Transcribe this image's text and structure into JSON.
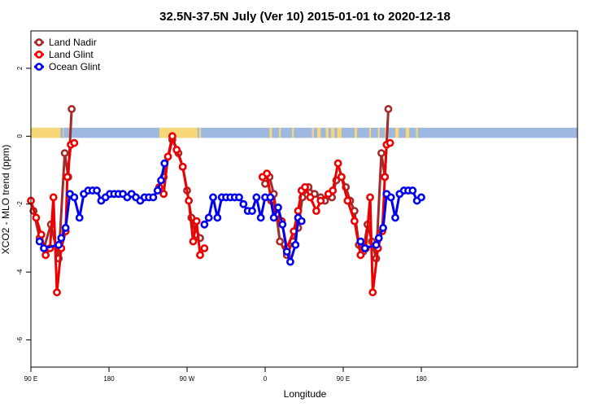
{
  "chart_data": {
    "type": "line",
    "title": "32.5N-37.5N July (Ver 10)   2015-01-01 to 2020-12-18",
    "xlabel": "Longitude",
    "ylabel": "XCO2 - MLO trend (ppm)",
    "xlim": [
      -90,
      540
    ],
    "ylim": [
      -6.8,
      3.1
    ],
    "x_ticks": [
      {
        "value": -90,
        "label": "90 E"
      },
      {
        "value": 0,
        "label": "180"
      },
      {
        "value": 90,
        "label": "90 W"
      },
      {
        "value": 180,
        "label": "0"
      },
      {
        "value": 270,
        "label": "90 E"
      },
      {
        "value": 360,
        "label": "180"
      }
    ],
    "y_ticks": [
      {
        "value": 2,
        "label": "2"
      },
      {
        "value": 0,
        "label": "0"
      },
      {
        "value": -2,
        "label": "-2"
      },
      {
        "value": -4,
        "label": "-4"
      },
      {
        "value": -6,
        "label": "-6"
      }
    ],
    "grid": false,
    "legend": "top-left",
    "land_ocean_strip": {
      "y_top": 0.25,
      "y_bottom": -0.05,
      "land_color": "#f8d778",
      "ocean_color": "#9fb8df",
      "land_segments": [
        [
          -90,
          -56
        ],
        [
          -53,
          -52
        ],
        [
          58,
          102
        ],
        [
          104,
          106
        ],
        [
          185,
          188
        ],
        [
          196,
          198
        ],
        [
          211,
          213
        ],
        [
          234,
          236
        ],
        [
          240,
          244
        ],
        [
          250,
          253
        ],
        [
          256,
          260
        ],
        [
          263,
          268
        ],
        [
          283,
          286
        ],
        [
          300,
          302
        ],
        [
          310,
          312
        ],
        [
          318,
          320
        ],
        [
          330,
          334
        ],
        [
          342,
          346
        ],
        [
          354,
          356
        ]
      ]
    },
    "series": [
      {
        "name": "Land Nadir",
        "color": "#a52a2a",
        "segments": [
          [
            [
              -87,
              -2.2
            ],
            [
              -80,
              -3
            ],
            [
              -75,
              -3.3
            ],
            [
              -67,
              -2.6
            ],
            [
              -58,
              -3.6
            ],
            [
              -51,
              -0.5
            ],
            [
              -47,
              -1.2
            ],
            [
              -43,
              0.8
            ]
          ],
          [
            [
              63,
              -1.2
            ],
            [
              73,
              -0.1
            ],
            [
              80,
              -0.5
            ],
            [
              85,
              -0.9
            ],
            [
              90,
              -1.6
            ],
            [
              95,
              -2.4
            ],
            [
              100,
              -2.9
            ],
            [
              105,
              -3
            ]
          ],
          [
            [
              180,
              -1.4
            ],
            [
              185,
              -1.2
            ],
            [
              190,
              -1.7
            ],
            [
              197,
              -3.1
            ],
            [
              205,
              -3.5
            ],
            [
              212,
              -3.1
            ],
            [
              218,
              -2.7
            ],
            [
              223,
              -1.8
            ],
            [
              230,
              -1.5
            ],
            [
              237,
              -1.7
            ],
            [
              244,
              -1.8
            ],
            [
              249,
              -1.9
            ],
            [
              257,
              -1.8
            ],
            [
              262,
              -1.3
            ],
            [
              268,
              -1.2
            ],
            [
              273,
              -1.5
            ],
            [
              278,
              -1.9
            ],
            [
              283,
              -2.2
            ],
            [
              288,
              -3.2
            ],
            [
              293,
              -3.4
            ],
            [
              298,
              -2.6
            ],
            [
              303,
              -3.1
            ],
            [
              308,
              -3.6
            ],
            [
              314,
              -0.5
            ],
            [
              318,
              -1.2
            ],
            [
              322,
              0.8
            ]
          ]
        ]
      },
      {
        "name": "Land Glint",
        "color": "#ee0000",
        "segments": [
          [
            [
              -90,
              -1.9
            ],
            [
              -84,
              -2.4
            ],
            [
              -78,
              -2.9
            ],
            [
              -73,
              -3.5
            ],
            [
              -68,
              -3.3
            ],
            [
              -64,
              -1.8
            ],
            [
              -60,
              -4.6
            ],
            [
              -55,
              -3.3
            ],
            [
              -50,
              -2.8
            ],
            [
              -48,
              -1.2
            ],
            [
              -44,
              -0.25
            ],
            [
              -40,
              -0.2
            ]
          ],
          [
            [
              58,
              -1.5
            ],
            [
              63,
              -1.7
            ],
            [
              68,
              -0.6
            ],
            [
              73,
              0
            ],
            [
              78,
              -0.4
            ],
            [
              85,
              -0.9
            ],
            [
              92,
              -1.9
            ],
            [
              97,
              -3.1
            ],
            [
              101,
              -2.5
            ],
            [
              105,
              -3.5
            ],
            [
              110,
              -3.3
            ]
          ],
          [
            [
              177,
              -1.2
            ],
            [
              182,
              -1.1
            ],
            [
              187,
              -1.9
            ],
            [
              193,
              -2.3
            ],
            [
              199,
              -2.5
            ],
            [
              205,
              -3.3
            ],
            [
              213,
              -2.8
            ],
            [
              218,
              -2.2
            ],
            [
              222,
              -1.6
            ],
            [
              226,
              -1.5
            ],
            [
              232,
              -1.8
            ],
            [
              239,
              -2.2
            ],
            [
              244,
              -1.9
            ],
            [
              253,
              -1.7
            ],
            [
              258,
              -1.6
            ],
            [
              264,
              -0.8
            ],
            [
              268,
              -1.2
            ],
            [
              275,
              -1.9
            ],
            [
              283,
              -2.5
            ],
            [
              290,
              -3.5
            ],
            [
              296,
              -3.3
            ],
            [
              301,
              -1.8
            ],
            [
              304,
              -4.6
            ],
            [
              310,
              -3.3
            ],
            [
              315,
              -2.8
            ],
            [
              318,
              -1.2
            ],
            [
              320,
              -0.25
            ],
            [
              324,
              -0.2
            ]
          ]
        ]
      },
      {
        "name": "Ocean Glint",
        "color": "#0000ee",
        "segments": [
          [
            [
              -80,
              -3.1
            ],
            [
              -75,
              -3.3
            ],
            [
              -58,
              -3.2
            ],
            [
              -55,
              -3
            ],
            [
              -50,
              -2.7
            ],
            [
              -45,
              -1.7
            ],
            [
              -40,
              -1.8
            ],
            [
              -34,
              -2.4
            ],
            [
              -29,
              -1.7
            ],
            [
              -24,
              -1.6
            ],
            [
              -19,
              -1.6
            ],
            [
              -14,
              -1.6
            ],
            [
              -9,
              -1.9
            ],
            [
              -4,
              -1.8
            ],
            [
              1,
              -1.7
            ],
            [
              6,
              -1.7
            ],
            [
              11,
              -1.7
            ],
            [
              16,
              -1.7
            ],
            [
              21,
              -1.8
            ],
            [
              26,
              -1.7
            ],
            [
              31,
              -1.8
            ],
            [
              36,
              -1.9
            ],
            [
              41,
              -1.8
            ],
            [
              46,
              -1.8
            ],
            [
              51,
              -1.8
            ],
            [
              56,
              -1.6
            ],
            [
              60,
              -1.3
            ],
            [
              64,
              -0.8
            ]
          ],
          [
            [
              110,
              -2.6
            ],
            [
              115,
              -2.4
            ],
            [
              120,
              -1.8
            ],
            [
              125,
              -2.4
            ],
            [
              130,
              -1.8
            ],
            [
              135,
              -1.8
            ],
            [
              140,
              -1.8
            ],
            [
              145,
              -1.8
            ],
            [
              150,
              -1.8
            ],
            [
              155,
              -2
            ],
            [
              160,
              -2.2
            ],
            [
              165,
              -2.2
            ],
            [
              170,
              -1.8
            ],
            [
              175,
              -2.4
            ],
            [
              180,
              -1.8
            ],
            [
              186,
              -1.8
            ],
            [
              190,
              -2.4
            ],
            [
              195,
              -2.1
            ],
            [
              200,
              -2.6
            ],
            [
              205,
              -3.4
            ],
            [
              209,
              -3.7
            ],
            [
              215,
              -3.2
            ],
            [
              218,
              -2.4
            ],
            [
              222,
              -2.5
            ]
          ],
          [
            [
              290,
              -3.1
            ],
            [
              295,
              -3.3
            ],
            [
              308,
              -3.2
            ],
            [
              311,
              -3
            ],
            [
              316,
              -2.7
            ],
            [
              320,
              -1.7
            ],
            [
              325,
              -1.8
            ],
            [
              330,
              -2.4
            ],
            [
              335,
              -1.7
            ],
            [
              340,
              -1.6
            ],
            [
              345,
              -1.6
            ],
            [
              350,
              -1.6
            ],
            [
              355,
              -1.9
            ],
            [
              360,
              -1.8
            ]
          ]
        ]
      }
    ]
  }
}
